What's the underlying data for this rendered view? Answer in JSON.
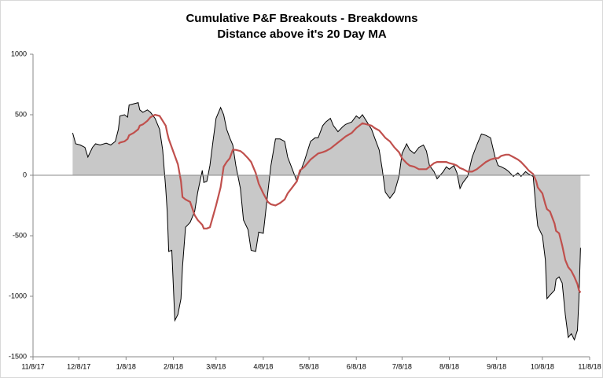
{
  "chart_data": {
    "type": "area_line",
    "title": [
      "Cumulative P&F Breakouts - Breakdowns",
      "Distance above it's 20 Day MA"
    ],
    "x": [
      "2017-12-04",
      "2017-12-06",
      "2017-12-09",
      "2017-12-12",
      "2017-12-14",
      "2017-12-17",
      "2017-12-19",
      "2017-12-22",
      "2017-12-26",
      "2017-12-29",
      "2018-01-01",
      "2018-01-03",
      "2018-01-04",
      "2018-01-07",
      "2018-01-09",
      "2018-01-10",
      "2018-01-13",
      "2018-01-16",
      "2018-01-17",
      "2018-01-19",
      "2018-01-22",
      "2018-01-24",
      "2018-01-27",
      "2018-01-30",
      "2018-02-01",
      "2018-02-03",
      "2018-02-04",
      "2018-02-05",
      "2018-02-07",
      "2018-02-09",
      "2018-02-11",
      "2018-02-13",
      "2018-02-14",
      "2018-02-16",
      "2018-02-19",
      "2018-02-22",
      "2018-02-24",
      "2018-02-27",
      "2018-02-28",
      "2018-03-02",
      "2018-03-04",
      "2018-03-06",
      "2018-03-08",
      "2018-03-11",
      "2018-03-13",
      "2018-03-15",
      "2018-03-17",
      "2018-03-19",
      "2018-03-21",
      "2018-03-24",
      "2018-03-26",
      "2018-03-29",
      "2018-03-31",
      "2018-04-03",
      "2018-04-05",
      "2018-04-08",
      "2018-04-11",
      "2018-04-13",
      "2018-04-16",
      "2018-04-19",
      "2018-04-22",
      "2018-04-24",
      "2018-04-27",
      "2018-04-30",
      "2018-05-02",
      "2018-05-05",
      "2018-05-09",
      "2018-05-12",
      "2018-05-14",
      "2018-05-17",
      "2018-05-19",
      "2018-05-22",
      "2018-05-24",
      "2018-05-27",
      "2018-05-30",
      "2018-06-01",
      "2018-06-05",
      "2018-06-08",
      "2018-06-10",
      "2018-06-12",
      "2018-06-15",
      "2018-06-18",
      "2018-06-20",
      "2018-06-23",
      "2018-06-25",
      "2018-06-27",
      "2018-06-30",
      "2018-07-03",
      "2018-07-06",
      "2018-07-08",
      "2018-07-11",
      "2018-07-13",
      "2018-07-16",
      "2018-07-19",
      "2018-07-22",
      "2018-07-24",
      "2018-07-26",
      "2018-07-29",
      "2018-07-31",
      "2018-08-04",
      "2018-08-06",
      "2018-08-08",
      "2018-08-11",
      "2018-08-13",
      "2018-08-15",
      "2018-08-17",
      "2018-08-20",
      "2018-08-23",
      "2018-08-26",
      "2018-08-29",
      "2018-09-01",
      "2018-09-04",
      "2018-09-07",
      "2018-09-09",
      "2018-09-11",
      "2018-09-14",
      "2018-09-16",
      "2018-09-19",
      "2018-09-22",
      "2018-09-24",
      "2018-09-27",
      "2018-09-29",
      "2018-10-02",
      "2018-10-04",
      "2018-10-05",
      "2018-10-08",
      "2018-10-10",
      "2018-10-11",
      "2018-10-13",
      "2018-10-16",
      "2018-10-17",
      "2018-10-19",
      "2018-10-21",
      "2018-10-23",
      "2018-10-25",
      "2018-10-27",
      "2018-10-29",
      "2018-10-31",
      "2018-11-01",
      "2018-11-02"
    ],
    "series": [
      {
        "kind": "area",
        "color": "#c8c8c8",
        "values": [
          350,
          260,
          250,
          230,
          150,
          230,
          260,
          250,
          265,
          250,
          280,
          380,
          490,
          500,
          480,
          580,
          590,
          600,
          540,
          520,
          540,
          520,
          470,
          380,
          210,
          -110,
          -300,
          -630,
          -620,
          -1200,
          -1150,
          -1020,
          -760,
          -430,
          -390,
          -300,
          -140,
          40,
          -60,
          -50,
          80,
          280,
          470,
          560,
          500,
          380,
          310,
          250,
          80,
          -110,
          -370,
          -450,
          -620,
          -630,
          -470,
          -480,
          -140,
          80,
          300,
          300,
          280,
          150,
          50,
          -50,
          20,
          120,
          280,
          310,
          310,
          410,
          440,
          470,
          410,
          360,
          400,
          420,
          440,
          490,
          470,
          500,
          440,
          380,
          310,
          210,
          50,
          -140,
          -190,
          -140,
          -10,
          180,
          260,
          210,
          180,
          230,
          250,
          200,
          80,
          30,
          -30,
          30,
          70,
          50,
          80,
          20,
          -110,
          -60,
          -10,
          150,
          250,
          340,
          330,
          310,
          150,
          80,
          70,
          50,
          30,
          -10,
          20,
          -10,
          30,
          10,
          -10,
          -300,
          -420,
          -500,
          -700,
          -1020,
          -990,
          -950,
          -860,
          -840,
          -890,
          -1150,
          -1340,
          -1310,
          -1360,
          -1280,
          -1020,
          -600
        ]
      },
      {
        "kind": "line",
        "color": "#c0504d",
        "values": [
          null,
          null,
          null,
          null,
          null,
          null,
          null,
          null,
          null,
          null,
          null,
          260,
          270,
          280,
          300,
          330,
          350,
          380,
          410,
          420,
          450,
          480,
          500,
          490,
          450,
          410,
          350,
          300,
          230,
          160,
          90,
          -50,
          -180,
          -200,
          -220,
          -330,
          -370,
          -410,
          -440,
          -440,
          -430,
          -340,
          -250,
          -100,
          70,
          110,
          140,
          210,
          210,
          200,
          180,
          140,
          110,
          20,
          -70,
          -150,
          -220,
          -240,
          -250,
          -230,
          -200,
          -150,
          -100,
          -50,
          40,
          70,
          130,
          160,
          180,
          190,
          200,
          220,
          240,
          270,
          300,
          320,
          350,
          390,
          410,
          430,
          420,
          410,
          390,
          370,
          340,
          310,
          280,
          230,
          190,
          140,
          100,
          80,
          70,
          50,
          50,
          50,
          70,
          100,
          110,
          110,
          110,
          100,
          90,
          80,
          60,
          50,
          30,
          30,
          50,
          80,
          110,
          130,
          140,
          140,
          160,
          170,
          170,
          150,
          130,
          110,
          70,
          40,
          10,
          -50,
          -100,
          -150,
          -240,
          -280,
          -300,
          -400,
          -460,
          -480,
          -580,
          -700,
          -760,
          -790,
          -840,
          -900,
          -950,
          -970
        ]
      }
    ],
    "xlim": [
      "2017-11-08",
      "2018-11-08"
    ],
    "xticks": [
      {
        "value": "2017-11-08",
        "label": "11/8/17"
      },
      {
        "value": "2017-12-08",
        "label": "12/8/17"
      },
      {
        "value": "2018-01-08",
        "label": "1/8/18"
      },
      {
        "value": "2018-02-08",
        "label": "2/8/18"
      },
      {
        "value": "2018-03-08",
        "label": "3/8/18"
      },
      {
        "value": "2018-04-08",
        "label": "4/8/18"
      },
      {
        "value": "2018-05-08",
        "label": "5/8/18"
      },
      {
        "value": "2018-06-08",
        "label": "6/8/18"
      },
      {
        "value": "2018-07-08",
        "label": "7/8/18"
      },
      {
        "value": "2018-08-08",
        "label": "8/8/18"
      },
      {
        "value": "2018-09-08",
        "label": "9/8/18"
      },
      {
        "value": "2018-10-08",
        "label": "10/8/18"
      },
      {
        "value": "2018-11-08",
        "label": "11/8/18"
      }
    ],
    "ylim": [
      -1500,
      1000
    ],
    "yticks": [
      -1500,
      -1000,
      -500,
      0,
      500,
      1000
    ]
  }
}
